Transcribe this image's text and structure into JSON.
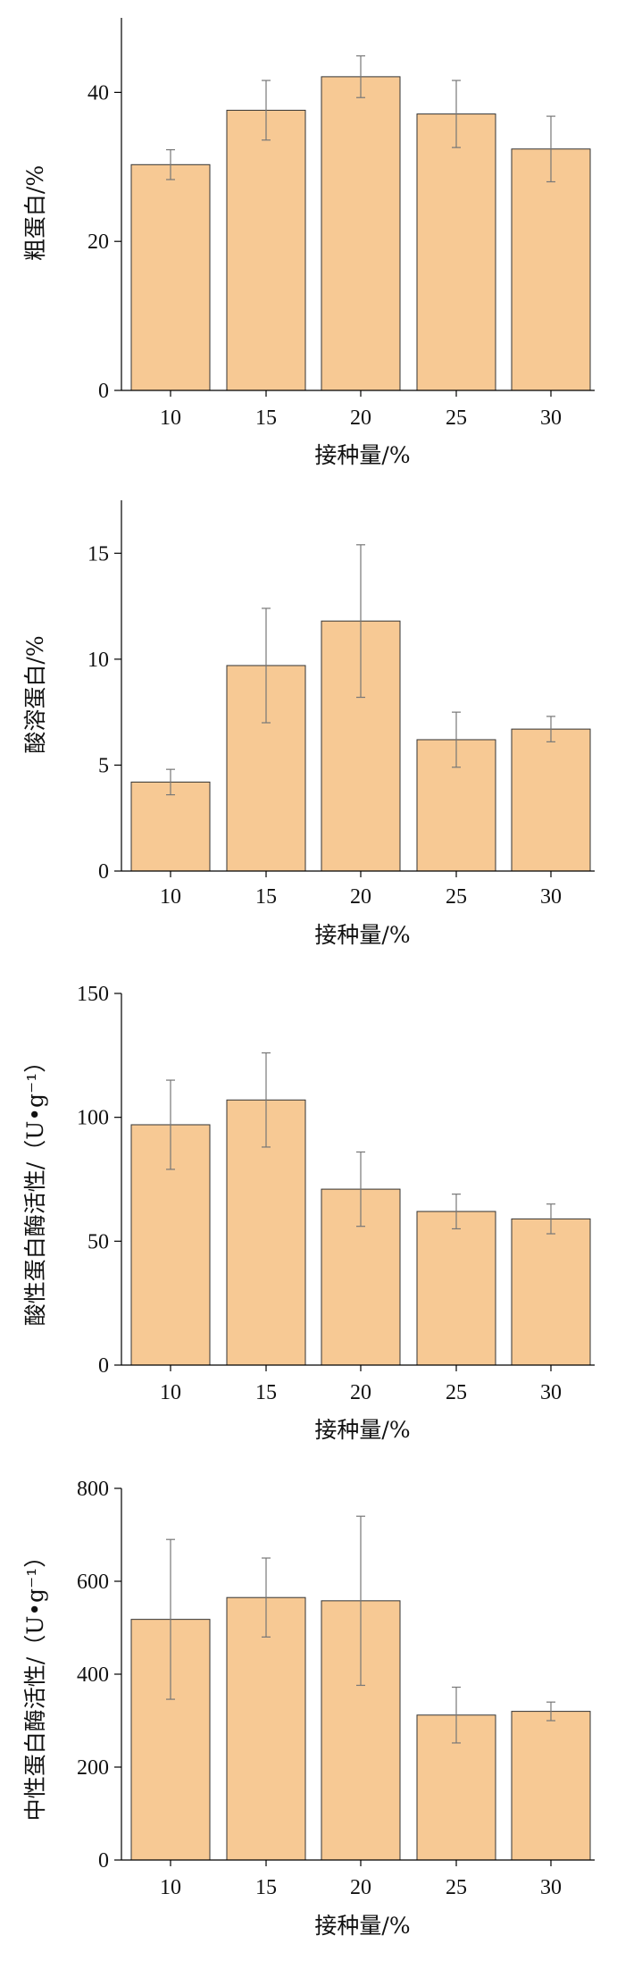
{
  "colors": {
    "bar_fill": "#f7c994",
    "bar_stroke": "#333333",
    "error_bar": "#777777"
  },
  "chart_data": [
    {
      "type": "bar",
      "categories": [
        "10",
        "15",
        "20",
        "25",
        "30"
      ],
      "values": [
        30.3,
        37.6,
        42.1,
        37.1,
        32.4
      ],
      "errors": [
        2.0,
        4.0,
        2.8,
        4.5,
        4.4
      ],
      "xlabel": "接种量/%",
      "ylabel": "粗蛋白/%",
      "ylim": [
        0,
        50
      ],
      "yticks": [
        0,
        20,
        40
      ],
      "ytick_labels": [
        "0",
        "20",
        "40"
      ],
      "grid": false
    },
    {
      "type": "bar",
      "categories": [
        "10",
        "15",
        "20",
        "25",
        "30"
      ],
      "values": [
        4.2,
        9.7,
        11.8,
        6.2,
        6.7
      ],
      "errors": [
        0.6,
        2.7,
        3.6,
        1.3,
        0.6
      ],
      "xlabel": "接种量/%",
      "ylabel": "酸溶蛋白/%",
      "ylim": [
        0,
        17.5
      ],
      "yticks": [
        0,
        5,
        10,
        15
      ],
      "ytick_labels": [
        "0",
        "5",
        "10",
        "15"
      ],
      "grid": false
    },
    {
      "type": "bar",
      "categories": [
        "10",
        "15",
        "20",
        "25",
        "30"
      ],
      "values": [
        97,
        107,
        71,
        62,
        59
      ],
      "errors": [
        18,
        19,
        15,
        7,
        6
      ],
      "xlabel": "接种量/%",
      "ylabel": "酸性蛋白酶活性/（U•g⁻¹）",
      "ylim": [
        0,
        150
      ],
      "yticks": [
        0,
        50,
        100,
        150
      ],
      "ytick_labels": [
        "0",
        "50",
        "100",
        "150"
      ],
      "grid": false
    },
    {
      "type": "bar",
      "categories": [
        "10",
        "15",
        "20",
        "25",
        "30"
      ],
      "values": [
        518,
        565,
        558,
        312,
        320
      ],
      "errors": [
        172,
        85,
        182,
        60,
        20
      ],
      "xlabel": "接种量/%",
      "ylabel": "中性蛋白酶活性/（U•g⁻¹）",
      "ylim": [
        0,
        800
      ],
      "yticks": [
        0,
        200,
        400,
        600,
        800
      ],
      "ytick_labels": [
        "0",
        "200",
        "400",
        "600",
        "800"
      ],
      "grid": false
    }
  ]
}
